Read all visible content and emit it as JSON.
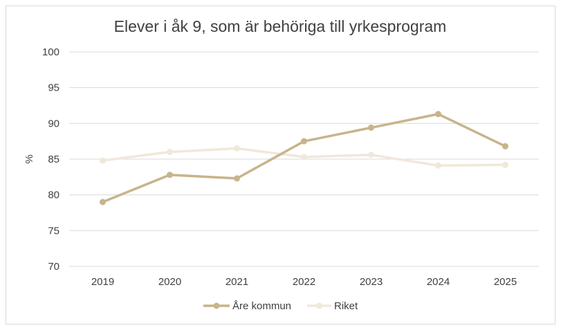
{
  "chart_data": {
    "type": "line",
    "title": "Elever i åk 9, som är behöriga till yrkesprogram",
    "xlabel": "",
    "ylabel": "%",
    "categories": [
      "2019",
      "2020",
      "2021",
      "2022",
      "2023",
      "2024",
      "2025"
    ],
    "ylim": [
      70,
      100
    ],
    "yticks": [
      "70",
      "75",
      "80",
      "85",
      "90",
      "95",
      "100"
    ],
    "grid": true,
    "legend_position": "bottom",
    "series": [
      {
        "name": "Åre kommun",
        "color": "#c8b48c",
        "values": [
          79.0,
          82.8,
          82.3,
          87.5,
          89.4,
          91.3,
          86.8
        ]
      },
      {
        "name": "Riket",
        "color": "#f0e8da",
        "values": [
          84.8,
          86.0,
          86.5,
          85.3,
          85.6,
          84.1,
          84.2
        ]
      }
    ]
  }
}
